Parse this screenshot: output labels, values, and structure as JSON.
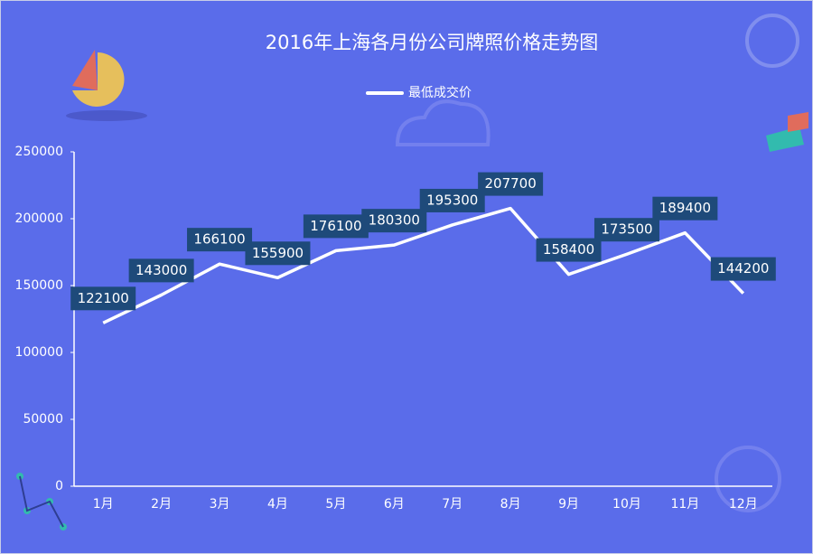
{
  "chart_data": {
    "type": "line",
    "title": "2016年上海各月份公司牌照价格走势图",
    "categories": [
      "1月",
      "2月",
      "3月",
      "4月",
      "5月",
      "6月",
      "7月",
      "8月",
      "9月",
      "10月",
      "11月",
      "12月"
    ],
    "series": [
      {
        "name": "最低成交价",
        "color": "#ffffff",
        "values": [
          122100,
          143000,
          166100,
          155900,
          176100,
          180300,
          195300,
          207700,
          158400,
          173500,
          189400,
          144200
        ]
      }
    ],
    "ylim": [
      0,
      250000
    ],
    "yticks": [
      0,
      50000,
      100000,
      150000,
      200000,
      250000
    ],
    "grid": false,
    "legend": "top"
  }
}
